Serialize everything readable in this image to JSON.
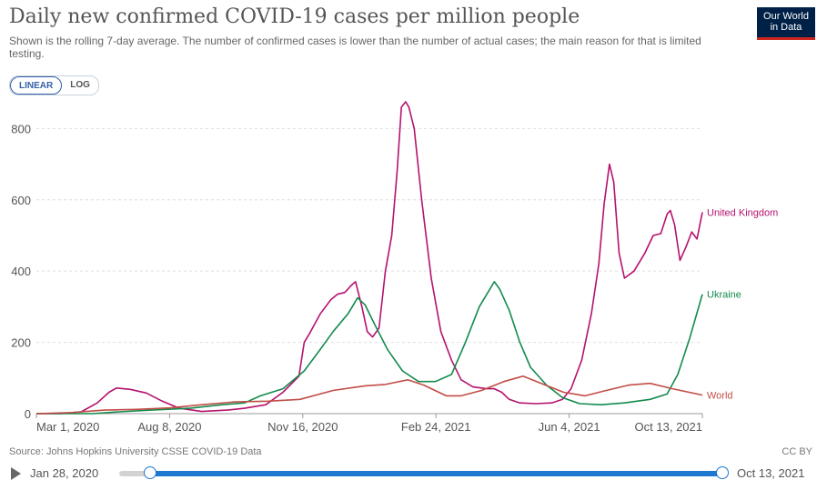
{
  "header": {
    "title": "Daily new confirmed COVID-19 cases per million people",
    "subtitle": "Shown is the rolling 7-day average. The number of confirmed cases is lower than the number of actual cases; the main reason for that is limited testing.",
    "logo_line1": "Our World",
    "logo_line2": "in Data"
  },
  "scale_toggle": {
    "linear_label": "LINEAR",
    "log_label": "LOG",
    "active": "linear"
  },
  "footer": {
    "source": "Source: Johns Hopkins University CSSE COVID-19 Data",
    "license": "CC BY"
  },
  "timeline": {
    "start_label": "Jan 28, 2020",
    "end_label": "Oct 13, 2021"
  },
  "colors": {
    "uk": "#b5126e",
    "ukraine": "#138a4e",
    "world": "#c14d46",
    "grid": "#dddddd",
    "axis_text": "#555555"
  },
  "chart_data": {
    "type": "line",
    "x_ticks": [
      "Mar 1, 2020",
      "Aug 8, 2020",
      "Nov 16, 2020",
      "Feb 24, 2021",
      "Jun 4, 2021",
      "Oct 13, 2021"
    ],
    "y_ticks": [
      0,
      200,
      400,
      600,
      800
    ],
    "ylim": [
      0,
      880
    ],
    "xlim": [
      "2020-01-28",
      "2021-10-13"
    ],
    "grid": "horizontal dashed",
    "series": [
      {
        "name": "United Kingdom",
        "label": "United Kingdom",
        "color": "#b5126e",
        "points": [
          [
            "2020-01-28",
            0
          ],
          [
            "2020-02-20",
            0
          ],
          [
            "2020-03-10",
            5
          ],
          [
            "2020-03-25",
            30
          ],
          [
            "2020-04-05",
            60
          ],
          [
            "2020-04-12",
            72
          ],
          [
            "2020-04-25",
            68
          ],
          [
            "2020-05-10",
            58
          ],
          [
            "2020-05-25",
            35
          ],
          [
            "2020-06-10",
            15
          ],
          [
            "2020-07-01",
            6
          ],
          [
            "2020-07-25",
            10
          ],
          [
            "2020-08-10",
            15
          ],
          [
            "2020-08-30",
            25
          ],
          [
            "2020-09-15",
            60
          ],
          [
            "2020-09-30",
            105
          ],
          [
            "2020-10-05",
            200
          ],
          [
            "2020-10-10",
            225
          ],
          [
            "2020-10-20",
            280
          ],
          [
            "2020-10-30",
            320
          ],
          [
            "2020-11-05",
            335
          ],
          [
            "2020-11-12",
            340
          ],
          [
            "2020-11-18",
            360
          ],
          [
            "2020-11-22",
            370
          ],
          [
            "2020-11-28",
            300
          ],
          [
            "2020-12-03",
            230
          ],
          [
            "2020-12-08",
            215
          ],
          [
            "2020-12-14",
            240
          ],
          [
            "2020-12-20",
            400
          ],
          [
            "2020-12-26",
            500
          ],
          [
            "2020-12-31",
            680
          ],
          [
            "2021-01-04",
            860
          ],
          [
            "2021-01-08",
            875
          ],
          [
            "2021-01-11",
            860
          ],
          [
            "2021-01-16",
            800
          ],
          [
            "2021-01-23",
            600
          ],
          [
            "2021-02-01",
            380
          ],
          [
            "2021-02-10",
            230
          ],
          [
            "2021-02-20",
            150
          ],
          [
            "2021-03-01",
            95
          ],
          [
            "2021-03-12",
            75
          ],
          [
            "2021-03-25",
            70
          ],
          [
            "2021-04-01",
            70
          ],
          [
            "2021-04-08",
            60
          ],
          [
            "2021-04-15",
            40
          ],
          [
            "2021-04-25",
            30
          ],
          [
            "2021-05-10",
            28
          ],
          [
            "2021-05-25",
            30
          ],
          [
            "2021-06-04",
            40
          ],
          [
            "2021-06-12",
            70
          ],
          [
            "2021-06-22",
            150
          ],
          [
            "2021-07-01",
            280
          ],
          [
            "2021-07-08",
            420
          ],
          [
            "2021-07-13",
            590
          ],
          [
            "2021-07-18",
            700
          ],
          [
            "2021-07-22",
            650
          ],
          [
            "2021-07-27",
            450
          ],
          [
            "2021-08-01",
            380
          ],
          [
            "2021-08-10",
            400
          ],
          [
            "2021-08-20",
            450
          ],
          [
            "2021-08-28",
            500
          ],
          [
            "2021-09-04",
            505
          ],
          [
            "2021-09-10",
            560
          ],
          [
            "2021-09-13",
            570
          ],
          [
            "2021-09-17",
            530
          ],
          [
            "2021-09-22",
            430
          ],
          [
            "2021-09-28",
            470
          ],
          [
            "2021-10-03",
            510
          ],
          [
            "2021-10-08",
            490
          ],
          [
            "2021-10-13",
            565
          ]
        ]
      },
      {
        "name": "Ukraine",
        "label": "Ukraine",
        "color": "#138a4e",
        "points": [
          [
            "2020-01-28",
            0
          ],
          [
            "2020-03-20",
            0
          ],
          [
            "2020-04-15",
            5
          ],
          [
            "2020-05-15",
            10
          ],
          [
            "2020-06-20",
            15
          ],
          [
            "2020-07-20",
            25
          ],
          [
            "2020-08-10",
            30
          ],
          [
            "2020-08-25",
            50
          ],
          [
            "2020-09-15",
            70
          ],
          [
            "2020-10-05",
            120
          ],
          [
            "2020-10-20",
            180
          ],
          [
            "2020-11-01",
            230
          ],
          [
            "2020-11-15",
            280
          ],
          [
            "2020-11-24",
            325
          ],
          [
            "2020-12-01",
            305
          ],
          [
            "2020-12-10",
            250
          ],
          [
            "2020-12-22",
            180
          ],
          [
            "2021-01-05",
            120
          ],
          [
            "2021-01-20",
            90
          ],
          [
            "2021-02-05",
            90
          ],
          [
            "2021-02-20",
            110
          ],
          [
            "2021-03-05",
            200
          ],
          [
            "2021-03-18",
            300
          ],
          [
            "2021-03-28",
            350
          ],
          [
            "2021-04-01",
            370
          ],
          [
            "2021-04-06",
            350
          ],
          [
            "2021-04-15",
            290
          ],
          [
            "2021-04-25",
            200
          ],
          [
            "2021-05-05",
            130
          ],
          [
            "2021-05-20",
            80
          ],
          [
            "2021-06-04",
            45
          ],
          [
            "2021-06-20",
            28
          ],
          [
            "2021-07-10",
            25
          ],
          [
            "2021-08-01",
            30
          ],
          [
            "2021-08-25",
            40
          ],
          [
            "2021-09-10",
            55
          ],
          [
            "2021-09-20",
            110
          ],
          [
            "2021-10-01",
            210
          ],
          [
            "2021-10-13",
            335
          ]
        ]
      },
      {
        "name": "World",
        "label": "World",
        "color": "#c14d46",
        "points": [
          [
            "2020-01-28",
            0
          ],
          [
            "2020-03-01",
            3
          ],
          [
            "2020-04-01",
            10
          ],
          [
            "2020-05-01",
            12
          ],
          [
            "2020-06-01",
            16
          ],
          [
            "2020-07-01",
            25
          ],
          [
            "2020-08-01",
            33
          ],
          [
            "2020-09-01",
            35
          ],
          [
            "2020-10-01",
            40
          ],
          [
            "2020-11-01",
            65
          ],
          [
            "2020-12-01",
            78
          ],
          [
            "2020-12-20",
            82
          ],
          [
            "2021-01-10",
            95
          ],
          [
            "2021-01-25",
            80
          ],
          [
            "2021-02-15",
            50
          ],
          [
            "2021-03-01",
            50
          ],
          [
            "2021-03-20",
            65
          ],
          [
            "2021-04-10",
            90
          ],
          [
            "2021-04-28",
            105
          ],
          [
            "2021-05-15",
            85
          ],
          [
            "2021-06-05",
            60
          ],
          [
            "2021-06-25",
            50
          ],
          [
            "2021-07-15",
            65
          ],
          [
            "2021-08-05",
            80
          ],
          [
            "2021-08-25",
            85
          ],
          [
            "2021-09-15",
            70
          ],
          [
            "2021-10-13",
            52
          ]
        ]
      }
    ]
  }
}
